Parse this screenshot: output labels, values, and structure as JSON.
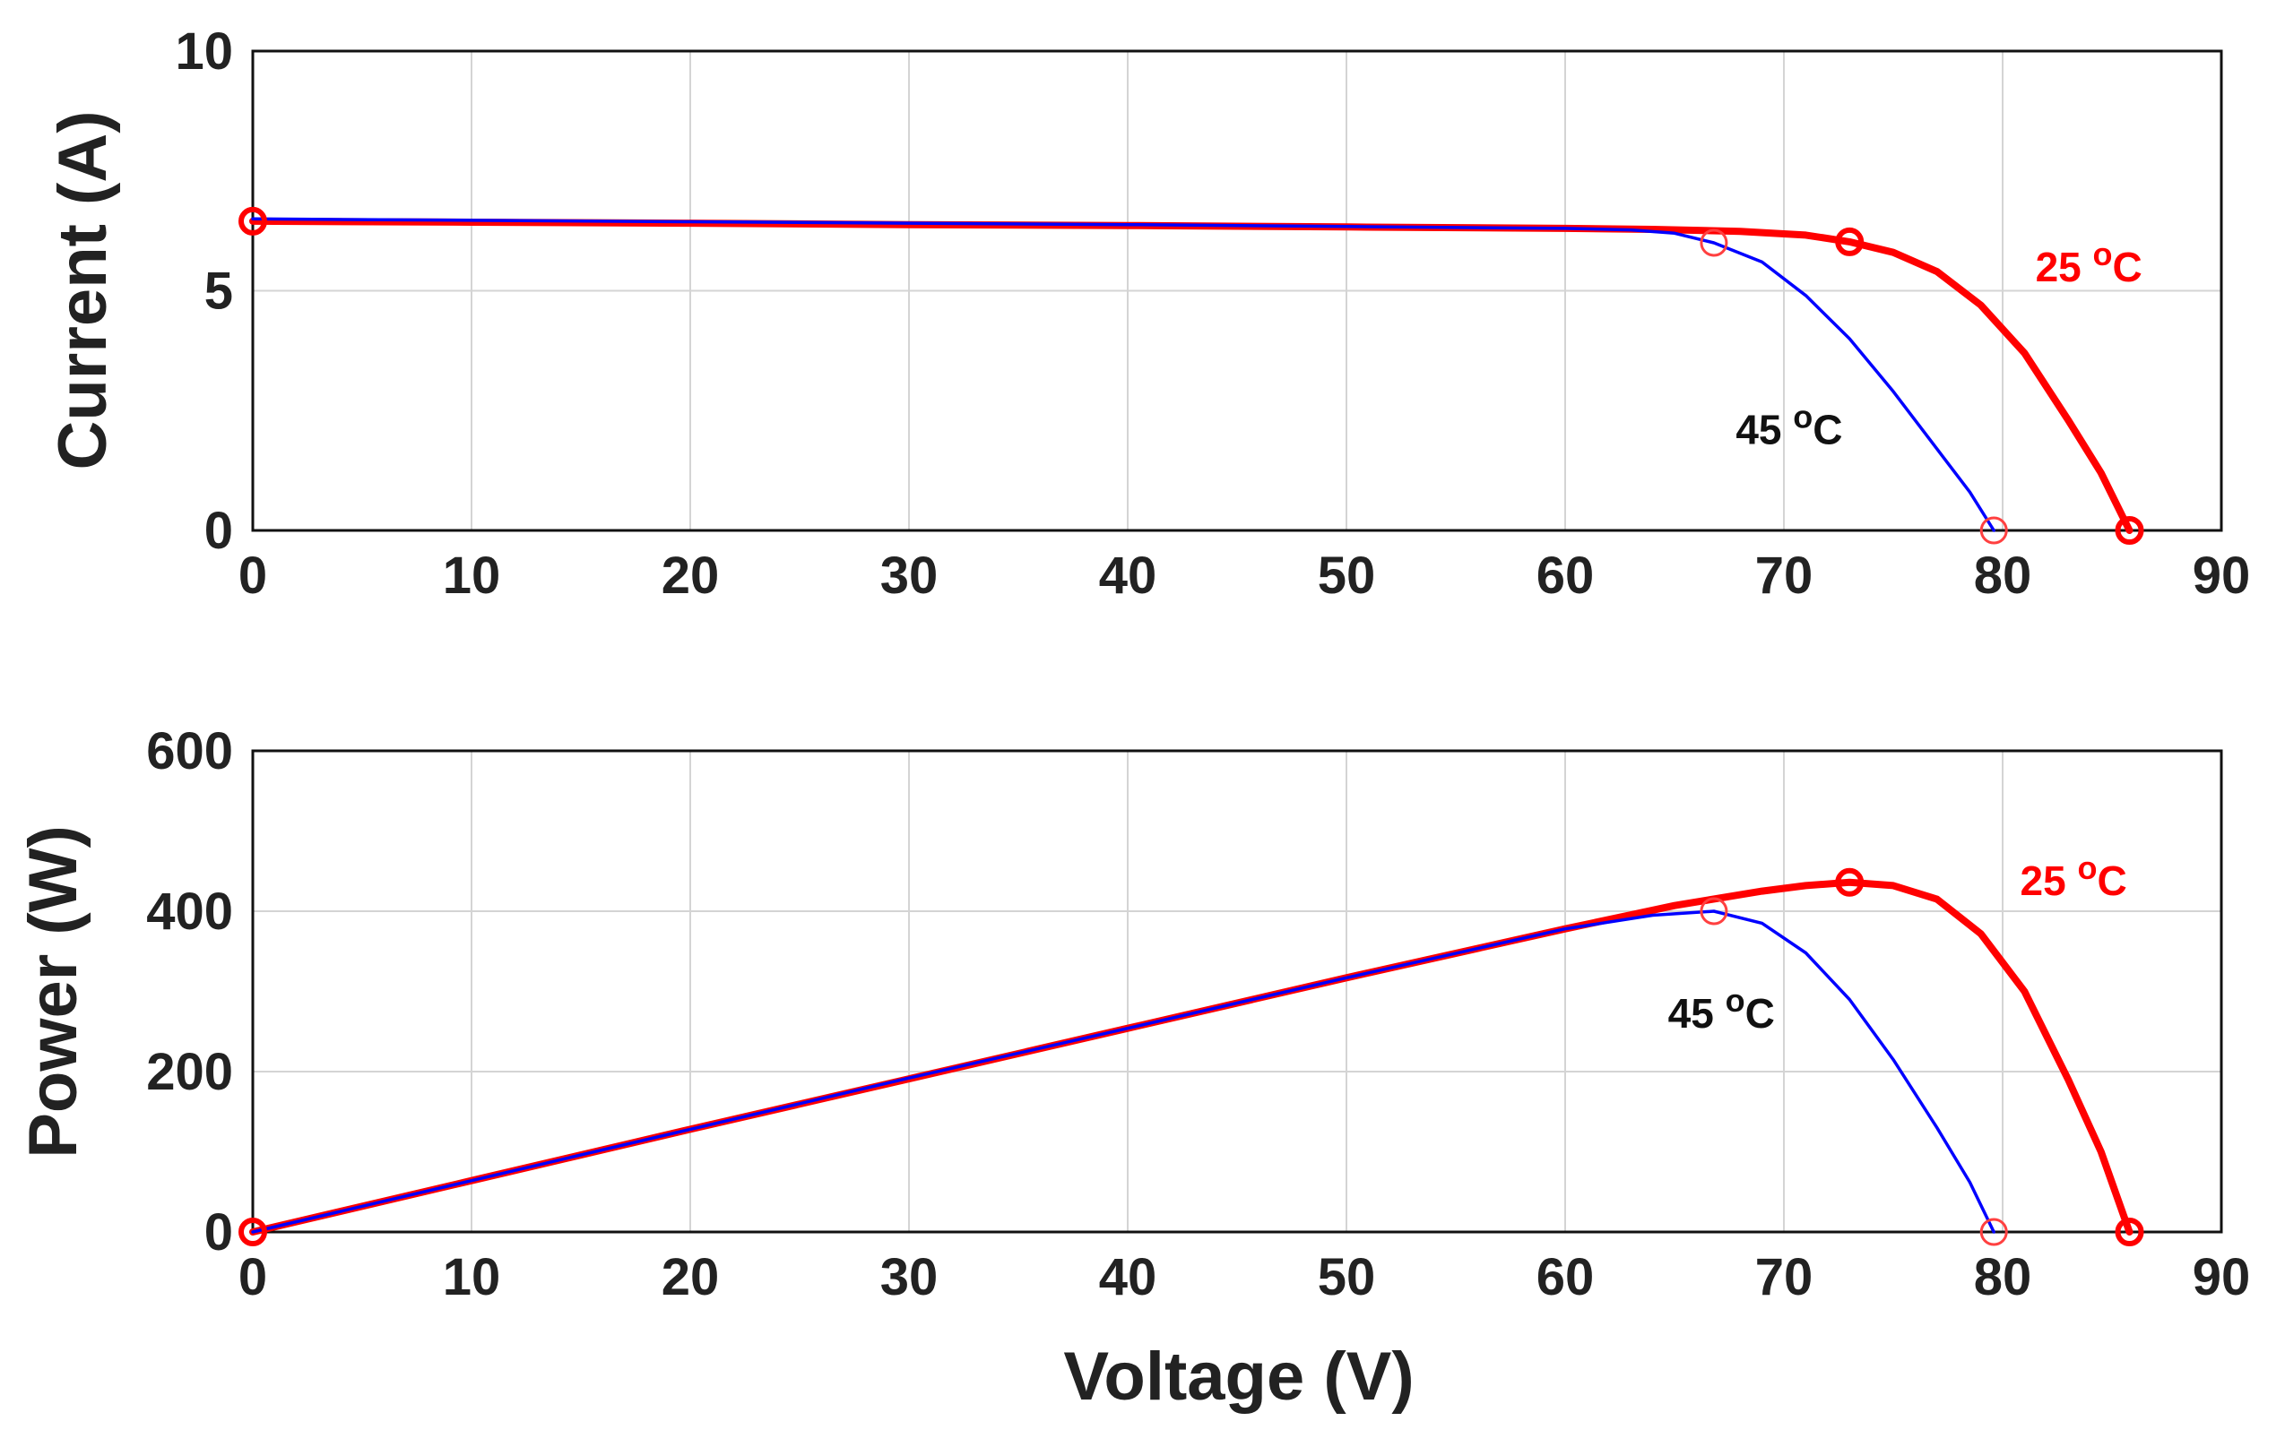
{
  "chart_data": [
    {
      "type": "line",
      "xlabel": "",
      "ylabel": "Current (A)",
      "xlim": [
        0,
        90
      ],
      "ylim": [
        0,
        10
      ],
      "xticks": [
        "0",
        "10",
        "20",
        "30",
        "40",
        "50",
        "60",
        "70",
        "80",
        "90"
      ],
      "yticks": [
        "0",
        "5",
        "10"
      ],
      "grid": true,
      "series": [
        {
          "name": "25 °C",
          "color": "#ff0000",
          "width": "thick",
          "x": [
            0,
            10,
            20,
            30,
            40,
            50,
            60,
            64,
            68,
            71,
            73,
            75,
            77,
            79,
            81,
            83,
            84.5,
            85.8
          ],
          "y": [
            6.45,
            6.43,
            6.41,
            6.38,
            6.36,
            6.33,
            6.3,
            6.28,
            6.24,
            6.16,
            6.02,
            5.8,
            5.4,
            4.7,
            3.7,
            2.3,
            1.2,
            0
          ],
          "markers": [
            {
              "x": 0,
              "y": 6.45
            },
            {
              "x": 73,
              "y": 6.02
            },
            {
              "x": 85.8,
              "y": 0
            }
          ],
          "label": {
            "text": "25 ",
            "sup": "o",
            "unit": "C",
            "x": 81.5,
            "y": 5.2
          }
        },
        {
          "name": "45 °C",
          "color": "#0000ff",
          "width": "thin",
          "x": [
            0,
            10,
            20,
            30,
            40,
            50,
            60,
            63,
            65,
            66.8,
            69,
            71,
            73,
            75,
            77,
            78.5,
            79.6
          ],
          "y": [
            6.5,
            6.47,
            6.44,
            6.41,
            6.38,
            6.34,
            6.3,
            6.27,
            6.2,
            6.0,
            5.6,
            4.9,
            4.0,
            2.9,
            1.7,
            0.8,
            0
          ],
          "markers": [
            {
              "x": 66.8,
              "y": 6.0
            },
            {
              "x": 79.6,
              "y": 0
            }
          ],
          "label": {
            "text": "45 ",
            "sup": "o",
            "unit": "C",
            "x": 67.8,
            "y": 1.8
          }
        }
      ]
    },
    {
      "type": "line",
      "xlabel": "Voltage (V)",
      "ylabel": "Power (W)",
      "xlim": [
        0,
        90
      ],
      "ylim": [
        0,
        600
      ],
      "xticks": [
        "0",
        "10",
        "20",
        "30",
        "40",
        "50",
        "60",
        "70",
        "80",
        "90"
      ],
      "yticks": [
        "0",
        "200",
        "400",
        "600"
      ],
      "grid": true,
      "series": [
        {
          "name": "25 °C",
          "color": "#ff0000",
          "width": "thick",
          "x": [
            0,
            10,
            20,
            30,
            40,
            50,
            60,
            65,
            69,
            71,
            73,
            75,
            77,
            79,
            81,
            83,
            84.5,
            85.8
          ],
          "y": [
            0,
            64,
            128,
            191,
            254,
            317,
            378,
            407,
            425,
            432,
            436,
            432,
            415,
            372,
            300,
            190,
            100,
            0
          ],
          "markers": [
            {
              "x": 0,
              "y": 0
            },
            {
              "x": 73,
              "y": 436
            },
            {
              "x": 85.8,
              "y": 0
            }
          ],
          "label": {
            "text": "25 ",
            "sup": "o",
            "unit": "C",
            "x": 80.8,
            "y": 420
          }
        },
        {
          "name": "45 °C",
          "color": "#0000ff",
          "width": "thin",
          "x": [
            0,
            10,
            20,
            30,
            40,
            50,
            60,
            64,
            66.8,
            69,
            71,
            73,
            75,
            77,
            78.5,
            79.6
          ],
          "y": [
            0,
            64,
            128,
            192,
            254,
            317,
            378,
            395,
            400,
            385,
            348,
            290,
            215,
            130,
            62,
            0
          ],
          "markers": [
            {
              "x": 66.8,
              "y": 400
            },
            {
              "x": 79.6,
              "y": 0
            }
          ],
          "label": {
            "text": "45 ",
            "sup": "o",
            "unit": "C",
            "x": 64.7,
            "y": 255
          }
        }
      ]
    }
  ]
}
